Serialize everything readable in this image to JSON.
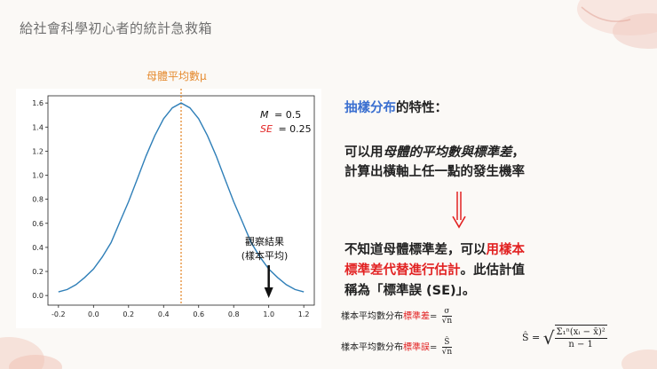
{
  "slide": {
    "title": "給社會科學初心者的統計急救箱"
  },
  "chart": {
    "mean_label": "母體平均數μ",
    "m_label": "M",
    "m_value": "= 0.5",
    "se_label": "SE",
    "se_value": "= 0.25",
    "observed_line1": "觀察結果",
    "observed_line2": "(樣本平均)",
    "observed_marker_x": 1.0
  },
  "chart_data": {
    "type": "line",
    "series": [
      {
        "distribution": "normal",
        "mean": 0.5,
        "sd": 0.25,
        "x": [
          -0.2,
          -0.15,
          -0.1,
          -0.05,
          0.0,
          0.05,
          0.1,
          0.15,
          0.2,
          0.25,
          0.3,
          0.35,
          0.4,
          0.45,
          0.5,
          0.55,
          0.6,
          0.65,
          0.7,
          0.75,
          0.8,
          0.85,
          0.9,
          0.95,
          1.0,
          1.05,
          1.1,
          1.15,
          1.2
        ],
        "y": [
          0.03,
          0.05,
          0.09,
          0.15,
          0.22,
          0.32,
          0.44,
          0.61,
          0.78,
          0.97,
          1.16,
          1.33,
          1.47,
          1.56,
          1.6,
          1.56,
          1.47,
          1.33,
          1.16,
          0.97,
          0.78,
          0.61,
          0.44,
          0.32,
          0.22,
          0.15,
          0.09,
          0.05,
          0.03
        ]
      }
    ],
    "xticks": [
      "-0.2",
      "0.0",
      "0.2",
      "0.4",
      "0.6",
      "0.8",
      "1.0",
      "1.2"
    ],
    "yticks": [
      "0.0",
      "0.2",
      "0.4",
      "0.6",
      "0.8",
      "1.0",
      "1.2",
      "1.4",
      "1.6"
    ],
    "xlim": [
      -0.26,
      1.26
    ],
    "ylim": [
      -0.08,
      1.66
    ],
    "mean_line_x": 0.5,
    "colors": {
      "curve": "#2f7fb8",
      "mean_line": "#e58a2e"
    }
  },
  "right": {
    "heading_blue": "抽樣分布",
    "heading_rest": "的特性：",
    "p1_a": "可以用",
    "p1_em": "母體的平均數與標準差",
    "p1_b": "，",
    "p2": "計算出橫軸上任一點的發生機率",
    "p3_a": "不知道母體標準差，可以",
    "p3_red": "用樣本",
    "p4_red": "標準差代替進行估計",
    "p4_b": "。此估計值",
    "p5": "稱為「標準誤 (SE)」。",
    "f1_a": "樣本平均數分布",
    "f1_red": "標準差",
    "f1_eq": "=",
    "f1_num": "σ",
    "f1_den": "√n",
    "f2_a": "樣本平均數分布",
    "f2_red": "標準誤",
    "f2_eq": "=",
    "f2_num": "Ŝ",
    "f2_den": "√n",
    "shat_lhs": "Ŝ =",
    "shat_num": "Σ₁ⁿ(xᵢ − x̄)²",
    "shat_den": "n − 1"
  },
  "colors": {
    "accent_red": "#e22222",
    "accent_blue": "#3a6fd0",
    "accent_orange": "#e58a2e"
  }
}
